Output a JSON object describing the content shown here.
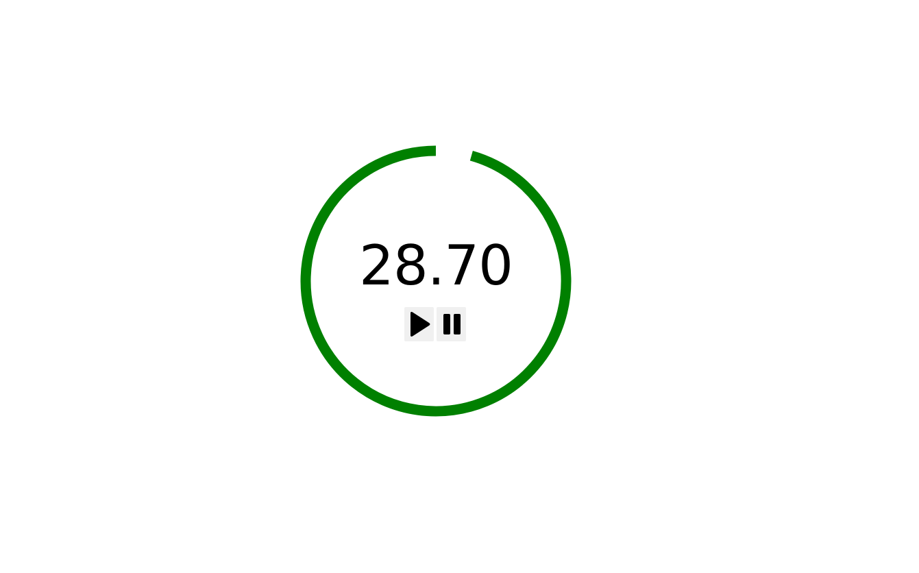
{
  "timer": {
    "display": "28.70",
    "progress_fraction": 0.956,
    "ring_color": "#008000"
  },
  "controls": {
    "play_icon": "play-icon",
    "pause_icon": "pause-icon",
    "button_background": "#f0f0f0"
  }
}
